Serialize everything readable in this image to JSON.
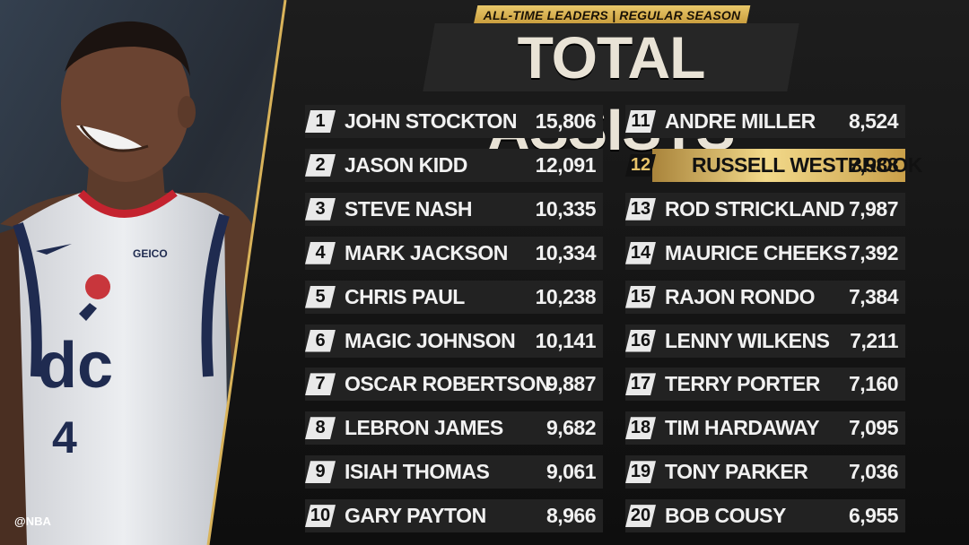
{
  "header": {
    "subtitle": "ALL-TIME LEADERS | REGULAR SEASON",
    "title": "TOTAL ASSISTS"
  },
  "credit": "@NBA",
  "jersey": {
    "team": "dc",
    "number": "4",
    "sponsor": "GEICO"
  },
  "colors": {
    "gold": "#e2be62",
    "background": "#181818",
    "row": "#222222",
    "rank_bg": "#e9e9e9"
  },
  "leaders": [
    {
      "rank": "1",
      "name": "JOHN STOCKTON",
      "assists": "15,806"
    },
    {
      "rank": "2",
      "name": "JASON KIDD",
      "assists": "12,091"
    },
    {
      "rank": "3",
      "name": "STEVE NASH",
      "assists": "10,335"
    },
    {
      "rank": "4",
      "name": "MARK JACKSON",
      "assists": "10,334"
    },
    {
      "rank": "5",
      "name": "CHRIS PAUL",
      "assists": "10,238"
    },
    {
      "rank": "6",
      "name": "MAGIC JOHNSON",
      "assists": "10,141"
    },
    {
      "rank": "7",
      "name": "OSCAR ROBERTSON",
      "assists": "9,887"
    },
    {
      "rank": "8",
      "name": "LEBRON JAMES",
      "assists": "9,682"
    },
    {
      "rank": "9",
      "name": "ISIAH THOMAS",
      "assists": "9,061"
    },
    {
      "rank": "10",
      "name": "GARY PAYTON",
      "assists": "8,966"
    },
    {
      "rank": "11",
      "name": "ANDRE MILLER",
      "assists": "8,524"
    },
    {
      "rank": "12",
      "name": "RUSSELL WESTBROOK",
      "assists": "7,988",
      "highlight": true
    },
    {
      "rank": "13",
      "name": "ROD STRICKLAND",
      "assists": "7,987"
    },
    {
      "rank": "14",
      "name": "MAURICE CHEEKS",
      "assists": "7,392"
    },
    {
      "rank": "15",
      "name": "RAJON RONDO",
      "assists": "7,384"
    },
    {
      "rank": "16",
      "name": "LENNY WILKENS",
      "assists": "7,211"
    },
    {
      "rank": "17",
      "name": "TERRY PORTER",
      "assists": "7,160"
    },
    {
      "rank": "18",
      "name": "TIM HARDAWAY",
      "assists": "7,095"
    },
    {
      "rank": "19",
      "name": "TONY PARKER",
      "assists": "7,036"
    },
    {
      "rank": "20",
      "name": "BOB COUSY",
      "assists": "6,955"
    }
  ]
}
